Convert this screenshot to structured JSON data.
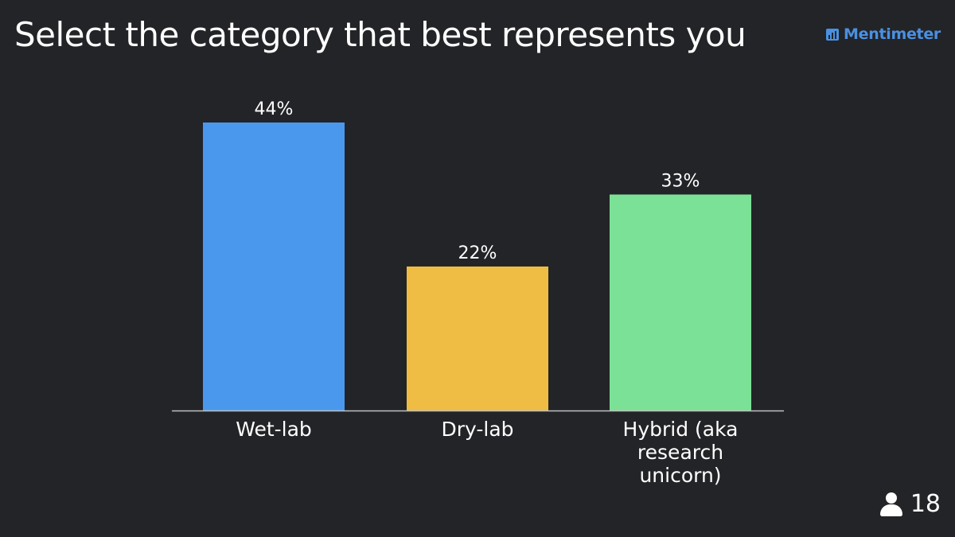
{
  "question": {
    "title": "Select the category that best represents you"
  },
  "branding": {
    "name": "Mentimeter",
    "icon": "mentimeter-logo-icon",
    "color": "#4a90e2"
  },
  "participants": {
    "icon": "person-icon",
    "count": "18"
  },
  "chart_data": {
    "type": "bar",
    "title": "Select the category that best represents you",
    "categories": [
      "Wet-lab",
      "Dry-lab",
      "Hybrid (aka research unicorn)"
    ],
    "category_label_lines": [
      [
        "Wet-lab"
      ],
      [
        "Dry-lab"
      ],
      [
        "Hybrid (aka",
        "research",
        "unicorn)"
      ]
    ],
    "values": [
      44,
      22,
      33
    ],
    "value_labels": [
      "44%",
      "22%",
      "33%"
    ],
    "colors": [
      "#4a98ee",
      "#efbd44",
      "#7be196"
    ],
    "unit": "%",
    "ylim": [
      0,
      44
    ],
    "xlabel": "",
    "ylabel": "",
    "grid": false,
    "legend": "none"
  },
  "colors": {
    "background": "#232427",
    "text": "#ffffff",
    "baseline": "#bfbfbf"
  }
}
